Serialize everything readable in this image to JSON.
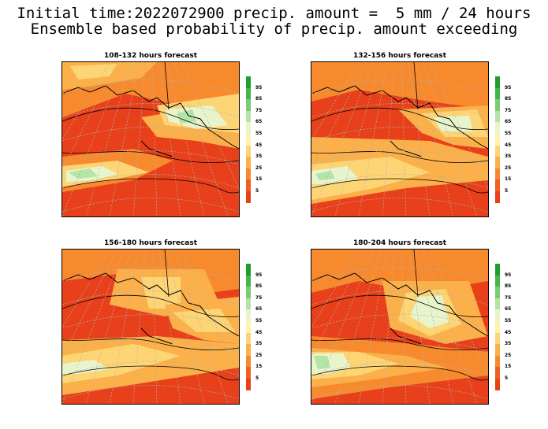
{
  "title_line1": "Initial time:2022072900 precip. amount =  5 mm / 24 hours",
  "title_line2": "Ensemble based probability of precip. amount exceeding",
  "panels": [
    {
      "title": "108-132 hours forecast"
    },
    {
      "title": "132-156 hours forecast"
    },
    {
      "title": "156-180 hours forecast"
    },
    {
      "title": "180-204 hours forecast"
    }
  ],
  "colorbar": {
    "labels": [
      "95",
      "85",
      "75",
      "65",
      "55",
      "45",
      "35",
      "25",
      "15",
      "5"
    ],
    "colors": [
      "#1e9e2a",
      "#44b64a",
      "#79cd73",
      "#b2e5a6",
      "#e8f5cc",
      "#fff3b0",
      "#fed575",
      "#fbb04a",
      "#f88a2e",
      "#ef6021",
      "#e8401a"
    ]
  },
  "colors": {
    "ocean_low": "#e8401a",
    "land_line": "#000000",
    "grid_line": "#b0b0b0"
  }
}
